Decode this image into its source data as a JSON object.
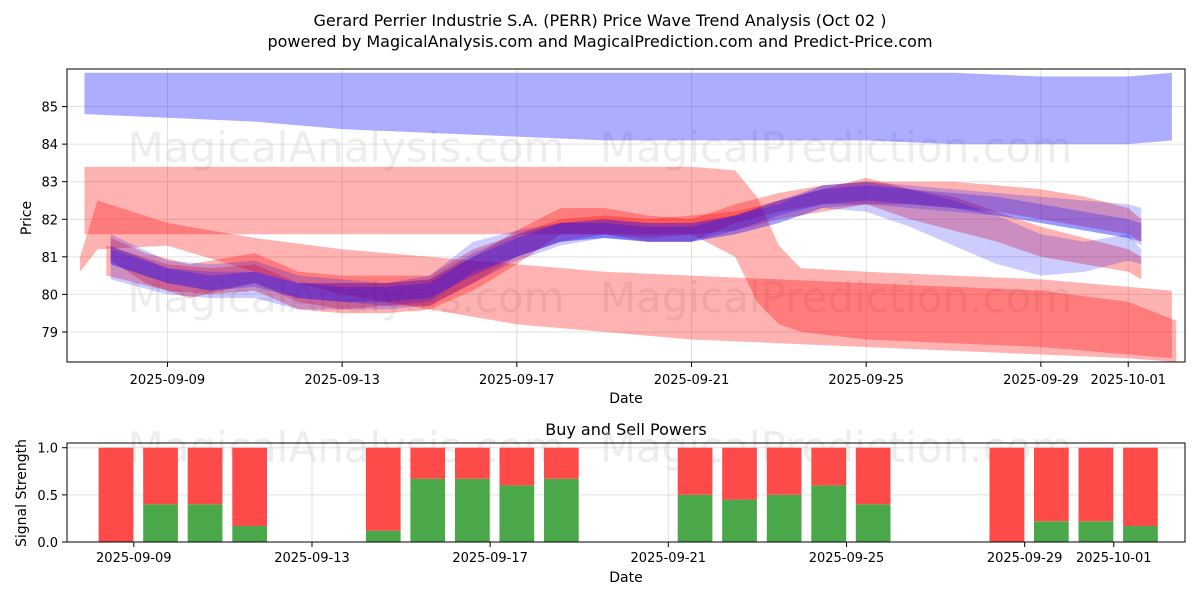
{
  "title": "Gerard Perrier Industrie S.A. (PERR) Price Wave Trend Analysis (Oct 02 )",
  "subtitle": "powered by MagicalAnalysis.com and MagicalPrediction.com and Predict-Price.com",
  "watermarks": [
    "MagicalAnalysis.com",
    "MagicalPrediction.com"
  ],
  "colors": {
    "blue_band": "#0000ff",
    "red_band": "#ff0000",
    "buy": "#4aa84a",
    "sell": "#ff4a4a",
    "grid": "#e0e0e0"
  },
  "chart_data": [
    {
      "type": "area",
      "title": "",
      "xlabel": "Date",
      "ylabel": "Price",
      "xlim_days": [
        -2.3,
        23.3
      ],
      "ylim": [
        78.2,
        86.0
      ],
      "x_ticks": [
        {
          "day": 0,
          "label": "2025-09-09"
        },
        {
          "day": 4,
          "label": "2025-09-13"
        },
        {
          "day": 8,
          "label": "2025-09-17"
        },
        {
          "day": 12,
          "label": "2025-09-21"
        },
        {
          "day": 16,
          "label": "2025-09-25"
        },
        {
          "day": 20,
          "label": "2025-09-29"
        },
        {
          "day": 22,
          "label": "2025-10-01"
        }
      ],
      "y_ticks": [
        79,
        80,
        81,
        82,
        83,
        84,
        85
      ],
      "series": [
        {
          "name": "blue-top-band",
          "color": "blue",
          "opacity": 0.32,
          "x": [
            -1.9,
            0,
            2,
            4,
            6,
            8,
            10,
            12,
            14,
            16,
            18,
            20,
            22,
            23
          ],
          "upper": [
            85.9,
            85.9,
            85.9,
            85.9,
            85.9,
            85.9,
            85.9,
            85.9,
            85.9,
            85.9,
            85.9,
            85.8,
            85.8,
            85.9
          ],
          "lower": [
            84.8,
            84.7,
            84.6,
            84.4,
            84.3,
            84.2,
            84.1,
            84.1,
            84.1,
            84.1,
            84.0,
            84.0,
            84.0,
            84.1
          ]
        },
        {
          "name": "red-box-band",
          "color": "red",
          "opacity": 0.3,
          "x": [
            -1.9,
            0,
            2,
            4,
            6,
            8,
            10,
            12,
            13.0,
            13.5,
            14.0,
            14.5,
            16,
            18,
            20,
            22,
            23
          ],
          "upper": [
            83.4,
            83.4,
            83.4,
            83.4,
            83.4,
            83.4,
            83.4,
            83.4,
            83.3,
            82.6,
            81.3,
            80.7,
            80.6,
            80.5,
            80.4,
            80.2,
            80.1
          ],
          "lower": [
            81.6,
            81.6,
            81.6,
            81.6,
            81.6,
            81.6,
            81.6,
            81.6,
            81.0,
            79.8,
            79.2,
            79.0,
            78.8,
            78.7,
            78.6,
            78.4,
            78.3
          ]
        },
        {
          "name": "red-diagonal-band",
          "color": "red",
          "opacity": 0.3,
          "x": [
            -2.0,
            -1.6,
            0,
            2,
            4,
            6,
            8,
            10,
            12,
            14,
            16,
            18,
            20,
            22,
            23.1
          ],
          "upper": [
            81.0,
            82.5,
            81.9,
            81.5,
            81.2,
            81.0,
            80.8,
            80.6,
            80.5,
            80.4,
            80.3,
            80.2,
            80.1,
            79.8,
            79.3
          ],
          "lower": [
            80.6,
            81.2,
            81.3,
            80.6,
            80.0,
            79.6,
            79.2,
            79.0,
            78.8,
            78.7,
            78.6,
            78.5,
            78.4,
            78.3,
            78.2
          ]
        },
        {
          "name": "red-wave-1",
          "color": "red",
          "opacity": 0.3,
          "x": [
            -1.3,
            -0.5,
            0.5,
            2,
            3,
            4,
            5,
            6,
            7,
            8,
            9,
            10,
            11,
            12,
            13,
            14,
            15,
            16,
            17,
            18,
            19,
            20,
            21,
            22,
            22.3
          ],
          "upper": [
            81.5,
            81.1,
            80.8,
            81.1,
            80.6,
            80.5,
            80.5,
            80.5,
            81.2,
            81.6,
            82.0,
            82.1,
            82.0,
            82.1,
            82.2,
            82.5,
            82.8,
            83.1,
            82.8,
            82.6,
            82.2,
            81.8,
            81.5,
            81.2,
            81.0
          ],
          "lower": [
            80.9,
            80.3,
            79.9,
            80.3,
            79.8,
            79.6,
            79.7,
            79.7,
            80.3,
            81.0,
            81.4,
            81.6,
            81.5,
            81.6,
            81.7,
            82.0,
            82.2,
            82.4,
            82.0,
            81.7,
            81.4,
            81.0,
            80.8,
            80.6,
            80.4
          ]
        },
        {
          "name": "red-wave-2",
          "color": "red",
          "opacity": 0.3,
          "x": [
            -1.4,
            0,
            1,
            2,
            3,
            4,
            5,
            6,
            7,
            8,
            9,
            10,
            11,
            12,
            13,
            14,
            15,
            16,
            17,
            18,
            19,
            20,
            21,
            22,
            22.3
          ],
          "upper": [
            81.3,
            80.8,
            80.7,
            80.8,
            80.3,
            80.3,
            80.3,
            80.4,
            81.0,
            81.7,
            82.3,
            82.3,
            82.1,
            82.0,
            82.4,
            82.7,
            82.9,
            83.0,
            83.0,
            83.0,
            82.9,
            82.8,
            82.6,
            82.3,
            82.0
          ],
          "lower": [
            80.5,
            80.1,
            80.0,
            80.1,
            79.6,
            79.5,
            79.5,
            79.6,
            80.1,
            80.8,
            81.6,
            81.6,
            81.4,
            81.4,
            81.9,
            82.2,
            82.4,
            82.4,
            82.4,
            82.3,
            82.2,
            82.0,
            81.8,
            81.6,
            81.4
          ]
        },
        {
          "name": "blue-wave-1",
          "color": "blue",
          "opacity": 0.2,
          "x": [
            -1.3,
            0,
            1,
            2,
            3,
            4,
            5,
            6,
            7,
            8,
            9,
            10,
            11,
            12,
            13,
            14,
            15,
            16,
            17,
            18,
            19,
            20,
            21,
            22,
            22.3
          ],
          "upper": [
            81.6,
            80.9,
            80.8,
            80.9,
            80.5,
            80.4,
            80.3,
            80.5,
            81.4,
            81.7,
            81.9,
            82.0,
            81.9,
            81.9,
            82.1,
            82.5,
            82.9,
            83.0,
            82.9,
            82.8,
            82.7,
            82.6,
            82.5,
            82.4,
            82.3
          ],
          "lower": [
            80.8,
            80.3,
            80.1,
            80.3,
            79.9,
            79.8,
            79.7,
            79.8,
            80.6,
            81.0,
            81.4,
            81.5,
            81.4,
            81.4,
            81.6,
            81.9,
            82.3,
            82.4,
            82.3,
            82.2,
            82.1,
            81.9,
            81.7,
            81.5,
            81.3
          ]
        },
        {
          "name": "blue-wave-2",
          "color": "blue",
          "opacity": 0.2,
          "x": [
            -1.3,
            0,
            1,
            2,
            3,
            4,
            5,
            6,
            7,
            8,
            9,
            10,
            11,
            12,
            13,
            14,
            15,
            16,
            17,
            18,
            19,
            20,
            21,
            22,
            22.3
          ],
          "upper": [
            81.2,
            80.7,
            80.6,
            80.6,
            80.3,
            80.3,
            80.3,
            80.4,
            81.1,
            81.6,
            81.9,
            82.0,
            81.9,
            81.9,
            82.1,
            82.4,
            82.9,
            83.0,
            82.8,
            82.5,
            82.1,
            81.6,
            81.4,
            81.6,
            81.2
          ],
          "lower": [
            80.4,
            80.0,
            79.9,
            79.9,
            79.6,
            79.6,
            79.6,
            79.7,
            80.3,
            80.9,
            81.3,
            81.5,
            81.4,
            81.4,
            81.6,
            81.9,
            82.3,
            82.2,
            81.8,
            81.3,
            80.8,
            80.5,
            80.6,
            80.9,
            80.8
          ]
        },
        {
          "name": "purple-core-band",
          "color": "blue",
          "opacity": 0.25,
          "x": [
            -1.3,
            0,
            1,
            2,
            3,
            4,
            5,
            6,
            7,
            8,
            9,
            10,
            11,
            12,
            13,
            14,
            15,
            16,
            17,
            18,
            19,
            20,
            21,
            22,
            22.3
          ],
          "upper": [
            81.3,
            80.7,
            80.5,
            80.6,
            80.3,
            80.2,
            80.2,
            80.3,
            81.0,
            81.5,
            81.9,
            81.9,
            81.8,
            81.8,
            82.1,
            82.5,
            82.8,
            82.9,
            82.8,
            82.7,
            82.6,
            82.4,
            82.2,
            82.0,
            81.9
          ],
          "lower": [
            80.8,
            80.3,
            80.1,
            80.2,
            79.9,
            79.8,
            79.8,
            79.9,
            80.5,
            81.0,
            81.4,
            81.5,
            81.4,
            81.4,
            81.7,
            82.1,
            82.4,
            82.5,
            82.4,
            82.3,
            82.1,
            81.9,
            81.7,
            81.5,
            81.4
          ]
        }
      ]
    },
    {
      "type": "bar",
      "title": "Buy and Sell Powers",
      "xlabel": "Date",
      "ylabel": "Signal Strength",
      "xlim_days": [
        -1.5,
        23.6
      ],
      "ylim": [
        0,
        1.05
      ],
      "x_ticks": [
        {
          "day": 0,
          "label": "2025-09-09"
        },
        {
          "day": 4,
          "label": "2025-09-13"
        },
        {
          "day": 8,
          "label": "2025-09-17"
        },
        {
          "day": 12,
          "label": "2025-09-21"
        },
        {
          "day": 16,
          "label": "2025-09-25"
        },
        {
          "day": 20,
          "label": "2025-09-29"
        },
        {
          "day": 22,
          "label": "2025-10-01"
        }
      ],
      "y_ticks": [
        0.0,
        0.5,
        1.0
      ],
      "y_tick_labels": [
        "0.0",
        "0.5",
        "1.0"
      ],
      "categories": [
        -0.4,
        0.6,
        1.6,
        2.6,
        5.6,
        6.6,
        7.6,
        8.6,
        9.6,
        12.6,
        13.6,
        14.6,
        15.6,
        16.6,
        19.6,
        20.6,
        21.6,
        22.6
      ],
      "series": [
        {
          "name": "Buy",
          "values": [
            0.0,
            0.4,
            0.4,
            0.17,
            0.12,
            0.67,
            0.67,
            0.6,
            0.67,
            0.5,
            0.45,
            0.5,
            0.6,
            0.4,
            0.0,
            0.22,
            0.22,
            0.17
          ]
        },
        {
          "name": "Sell",
          "values": [
            1.0,
            0.6,
            0.6,
            0.83,
            0.88,
            0.33,
            0.33,
            0.4,
            0.33,
            0.5,
            0.55,
            0.5,
            0.4,
            0.6,
            1.0,
            0.78,
            0.78,
            0.83
          ]
        }
      ]
    }
  ]
}
